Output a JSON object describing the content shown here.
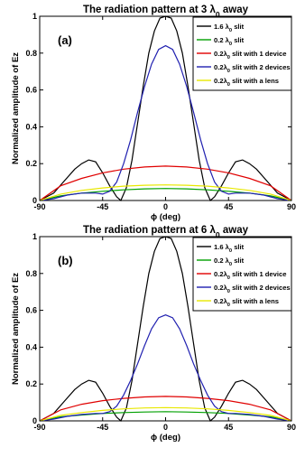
{
  "chart_data": [
    {
      "type": "line",
      "title": "The radiation pattern at 3 λ0 away",
      "panel_label": "(a)",
      "xlabel": "ϕ (deg)",
      "ylabel": "Normalized amplitude of Ez",
      "xlim": [
        -90,
        90
      ],
      "ylim": [
        0,
        1
      ],
      "xticks": [
        "-90",
        "-45",
        "0",
        "45",
        "90"
      ],
      "yticks": [
        "0",
        "0.2",
        "0.4",
        "0.6",
        "0.8",
        "1"
      ],
      "legend_position": "top-right",
      "series": [
        {
          "name": "1.6 λ0 slit",
          "color": "#000000",
          "x": [
            -90,
            -80,
            -72,
            -65,
            -60,
            -55,
            -50,
            -45,
            -40,
            -35,
            -32,
            -28,
            -24,
            -20,
            -16,
            -12,
            -8,
            -4,
            0,
            4,
            8,
            12,
            16,
            20,
            24,
            28,
            32,
            35,
            40,
            45,
            50,
            55,
            60,
            65,
            72,
            80,
            90
          ],
          "y": [
            0,
            0.04,
            0.11,
            0.17,
            0.2,
            0.22,
            0.21,
            0.15,
            0.08,
            0.02,
            0,
            0.07,
            0.22,
            0.42,
            0.62,
            0.8,
            0.92,
            0.99,
            1,
            0.99,
            0.92,
            0.8,
            0.62,
            0.42,
            0.22,
            0.07,
            0,
            0.02,
            0.08,
            0.15,
            0.21,
            0.22,
            0.2,
            0.17,
            0.11,
            0.04,
            0
          ]
        },
        {
          "name": "0.2 λ0 slit",
          "color": "#00a000",
          "x": [
            -90,
            -75,
            -60,
            -45,
            -30,
            -15,
            0,
            15,
            30,
            45,
            60,
            75,
            90
          ],
          "y": [
            0,
            0.025,
            0.04,
            0.05,
            0.058,
            0.063,
            0.065,
            0.063,
            0.058,
            0.05,
            0.04,
            0.025,
            0
          ]
        },
        {
          "name": "0.2λ0 slit with 1 device",
          "color": "#e00000",
          "x": [
            -90,
            -75,
            -60,
            -45,
            -30,
            -15,
            0,
            15,
            30,
            45,
            60,
            75,
            90
          ],
          "y": [
            0,
            0.08,
            0.12,
            0.15,
            0.17,
            0.182,
            0.187,
            0.182,
            0.17,
            0.15,
            0.12,
            0.08,
            0
          ]
        },
        {
          "name": "0.2λ0 slit with 2 devices",
          "color": "#2020b0",
          "x": [
            -90,
            -80,
            -70,
            -60,
            -50,
            -45,
            -40,
            -35,
            -30,
            -25,
            -20,
            -15,
            -10,
            -5,
            0,
            5,
            10,
            15,
            20,
            25,
            30,
            35,
            40,
            45,
            50,
            60,
            70,
            80,
            90
          ],
          "y": [
            0,
            0.01,
            0.03,
            0.04,
            0.04,
            0.035,
            0.05,
            0.1,
            0.2,
            0.33,
            0.48,
            0.62,
            0.74,
            0.82,
            0.84,
            0.82,
            0.74,
            0.62,
            0.48,
            0.33,
            0.2,
            0.1,
            0.05,
            0.035,
            0.04,
            0.04,
            0.03,
            0.01,
            0
          ]
        },
        {
          "name": "0.2λ0 slit with a lens",
          "color": "#e8e800",
          "x": [
            -90,
            -75,
            -60,
            -45,
            -30,
            -15,
            0,
            15,
            30,
            45,
            60,
            75,
            90
          ],
          "y": [
            0,
            0.035,
            0.055,
            0.068,
            0.078,
            0.083,
            0.085,
            0.083,
            0.078,
            0.068,
            0.055,
            0.035,
            0
          ]
        }
      ]
    },
    {
      "type": "line",
      "title": "The radiation pattern at 6 λ0 away",
      "panel_label": "(b)",
      "xlabel": "ϕ (deg)",
      "ylabel": "Normalized amplitude of Ez",
      "xlim": [
        -90,
        90
      ],
      "ylim": [
        0,
        1
      ],
      "xticks": [
        "-90",
        "-45",
        "0",
        "45",
        "90"
      ],
      "yticks": [
        "0",
        "0.2",
        "0.4",
        "0.6",
        "0.8",
        "1"
      ],
      "legend_position": "top-right",
      "series": [
        {
          "name": "1.6 λ0 slit",
          "color": "#000000",
          "x": [
            -90,
            -80,
            -72,
            -65,
            -60,
            -55,
            -50,
            -45,
            -40,
            -35,
            -32,
            -28,
            -24,
            -20,
            -16,
            -12,
            -8,
            -4,
            0,
            4,
            8,
            12,
            16,
            20,
            24,
            28,
            32,
            35,
            40,
            45,
            50,
            55,
            60,
            65,
            72,
            80,
            90
          ],
          "y": [
            0,
            0.04,
            0.11,
            0.17,
            0.2,
            0.22,
            0.21,
            0.15,
            0.08,
            0.02,
            0,
            0.07,
            0.22,
            0.42,
            0.62,
            0.8,
            0.92,
            0.99,
            1,
            0.99,
            0.92,
            0.8,
            0.62,
            0.42,
            0.22,
            0.07,
            0,
            0.02,
            0.08,
            0.15,
            0.21,
            0.22,
            0.2,
            0.17,
            0.11,
            0.04,
            0
          ]
        },
        {
          "name": "0.2 λ0 slit",
          "color": "#00a000",
          "x": [
            -90,
            -75,
            -60,
            -45,
            -30,
            -15,
            0,
            15,
            30,
            45,
            60,
            75,
            90
          ],
          "y": [
            0,
            0.022,
            0.032,
            0.04,
            0.045,
            0.048,
            0.05,
            0.048,
            0.045,
            0.04,
            0.032,
            0.022,
            0
          ]
        },
        {
          "name": "0.2λ0 slit with 1 device",
          "color": "#e00000",
          "x": [
            -90,
            -75,
            -60,
            -45,
            -30,
            -15,
            0,
            15,
            30,
            45,
            60,
            75,
            90
          ],
          "y": [
            0,
            0.06,
            0.09,
            0.11,
            0.122,
            0.13,
            0.133,
            0.13,
            0.122,
            0.11,
            0.09,
            0.06,
            0
          ]
        },
        {
          "name": "0.2λ0 slit with 2 devices",
          "color": "#2020b0",
          "x": [
            -90,
            -80,
            -70,
            -60,
            -50,
            -45,
            -40,
            -35,
            -30,
            -25,
            -20,
            -15,
            -10,
            -5,
            0,
            5,
            10,
            15,
            20,
            25,
            30,
            35,
            40,
            45,
            50,
            60,
            70,
            80,
            90
          ],
          "y": [
            0,
            0.01,
            0.025,
            0.035,
            0.04,
            0.04,
            0.05,
            0.08,
            0.14,
            0.22,
            0.31,
            0.41,
            0.5,
            0.56,
            0.575,
            0.56,
            0.5,
            0.41,
            0.31,
            0.22,
            0.14,
            0.08,
            0.05,
            0.04,
            0.04,
            0.035,
            0.025,
            0.01,
            0
          ]
        },
        {
          "name": "0.2λ0 slit with a lens",
          "color": "#e8e800",
          "x": [
            -90,
            -75,
            -60,
            -45,
            -30,
            -15,
            0,
            15,
            30,
            45,
            60,
            75,
            90
          ],
          "y": [
            0,
            0.03,
            0.045,
            0.057,
            0.065,
            0.07,
            0.072,
            0.07,
            0.065,
            0.057,
            0.045,
            0.03,
            0
          ]
        }
      ]
    }
  ]
}
